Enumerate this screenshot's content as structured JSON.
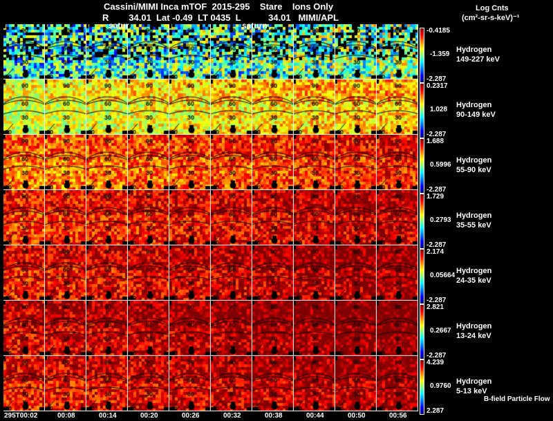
{
  "header": {
    "title": "Cassini/MIMI Inca mTOF  2015-295    Stare    Ions Only",
    "subtitle": "R        34.01  Lat -0.49  LT 0435  L           34.01   MIMI/APL",
    "planet_label": "saturn",
    "planet_label_short": "satur",
    "units_line1": "Log Cnts",
    "units_line2": "(cm²-sr-s-keV)⁻¹"
  },
  "footer": {
    "flow_label": "B-field Particle Flow"
  },
  "chart_data": {
    "type": "heatmap",
    "title": "Cassini/MIMI Inca mTOF 2015-295 Stare Ions Only",
    "colorbar_label": "Log Cnts (cm²-sr-s-keV)⁻¹",
    "colormap": "jet",
    "x_tick_labels": [
      "295T00:02",
      "00:08",
      "00:14",
      "00:20",
      "00:26",
      "00:32",
      "00:38",
      "00:44",
      "00:50",
      "00:56"
    ],
    "panel_arc_labels": [
      "90",
      "60",
      "30",
      "20"
    ],
    "rows": [
      {
        "species": "Hydrogen",
        "energy": "149-227 keV",
        "cmax": "-0.4185",
        "cmid": "-1.359",
        "cmin": "-2.287",
        "mean_level": 0.38,
        "coverage": 0.75
      },
      {
        "species": "Hydrogen",
        "energy": "90-149 keV",
        "cmax": "0.2317",
        "cmid": "1.028",
        "cmin": "-2.287",
        "mean_level": 0.58,
        "coverage": 1
      },
      {
        "species": "Hydrogen",
        "energy": "55-90 keV",
        "cmax": "1.688",
        "cmid": "0.5996",
        "cmin": "-2.287",
        "mean_level": 0.74,
        "coverage": 1
      },
      {
        "species": "Hydrogen",
        "energy": "35-55 keV",
        "cmax": "1.729",
        "cmid": "0.2793",
        "cmin": "-2.287",
        "mean_level": 0.82,
        "coverage": 1
      },
      {
        "species": "Hydrogen",
        "energy": "24-35 keV",
        "cmax": "2.174",
        "cmid": "0.05664",
        "cmin": "-2.287",
        "mean_level": 0.86,
        "coverage": 1
      },
      {
        "species": "Hydrogen",
        "energy": "13-24 keV",
        "cmax": "2.821",
        "cmid": "0.2667",
        "cmin": "-2.287",
        "mean_level": 0.9,
        "coverage": 1
      },
      {
        "species": "Hydrogen",
        "energy": "5-13 keV",
        "cmax": "4.239",
        "cmid": "0.9760",
        "cmin": "2.287",
        "mean_level": 0.86,
        "coverage": 1
      }
    ]
  }
}
